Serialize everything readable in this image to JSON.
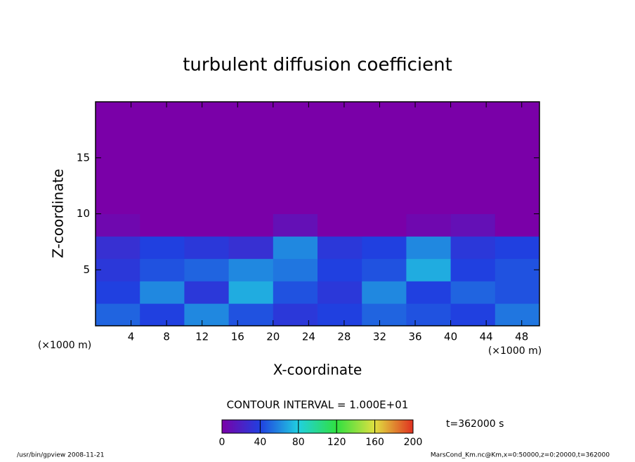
{
  "chart_data": {
    "type": "heatmap",
    "title": "turbulent diffusion coefficient",
    "x_label": "X-coordinate",
    "y_label": "Z-coordinate",
    "x_unit": "(×1000 m)",
    "x_edges": [
      0,
      5,
      10,
      15,
      20,
      25,
      30,
      35,
      40,
      45,
      50
    ],
    "y_edges": [
      0,
      2,
      4,
      6,
      8,
      10,
      12,
      14,
      16,
      18,
      20
    ],
    "values": [
      [
        50,
        40,
        60,
        45,
        35,
        40,
        50,
        45,
        40,
        55
      ],
      [
        40,
        60,
        35,
        70,
        45,
        35,
        60,
        40,
        50,
        45
      ],
      [
        35,
        45,
        50,
        60,
        55,
        40,
        45,
        70,
        40,
        45
      ],
      [
        30,
        40,
        35,
        30,
        60,
        35,
        40,
        60,
        35,
        40
      ],
      [
        5,
        0,
        0,
        0,
        10,
        0,
        0,
        5,
        10,
        0
      ],
      [
        0,
        0,
        0,
        0,
        0,
        0,
        0,
        0,
        0,
        0
      ],
      [
        0,
        0,
        0,
        0,
        0,
        0,
        0,
        0,
        0,
        0
      ],
      [
        0,
        0,
        0,
        0,
        0,
        0,
        0,
        0,
        0,
        0
      ],
      [
        0,
        0,
        0,
        0,
        0,
        0,
        0,
        0,
        0,
        0
      ],
      [
        0,
        0,
        0,
        0,
        0,
        0,
        0,
        0,
        0,
        0
      ]
    ],
    "xlim": [
      0,
      50
    ],
    "ylim": [
      0,
      20
    ],
    "xticks": [
      4,
      8,
      12,
      16,
      20,
      24,
      28,
      32,
      36,
      40,
      44,
      48
    ],
    "yticks": [
      5,
      10,
      15
    ],
    "colormap": [
      "#7a00a8",
      "#2040e0",
      "#20d0e0",
      "#30e040",
      "#e0e040",
      "#e03020"
    ],
    "colorbar_lim": [
      0,
      200
    ],
    "colorbar_ticks": [
      0,
      40,
      80,
      120,
      160,
      200
    ],
    "contour_interval_label": "CONTOUR INTERVAL = 1.000E+01",
    "time_label": "t=362000 s",
    "footer_left": "/usr/bin/gpview   2008-11-21",
    "footer_right": "MarsCond_Km.nc@Km,x=0:50000,z=0:20000,t=362000"
  }
}
